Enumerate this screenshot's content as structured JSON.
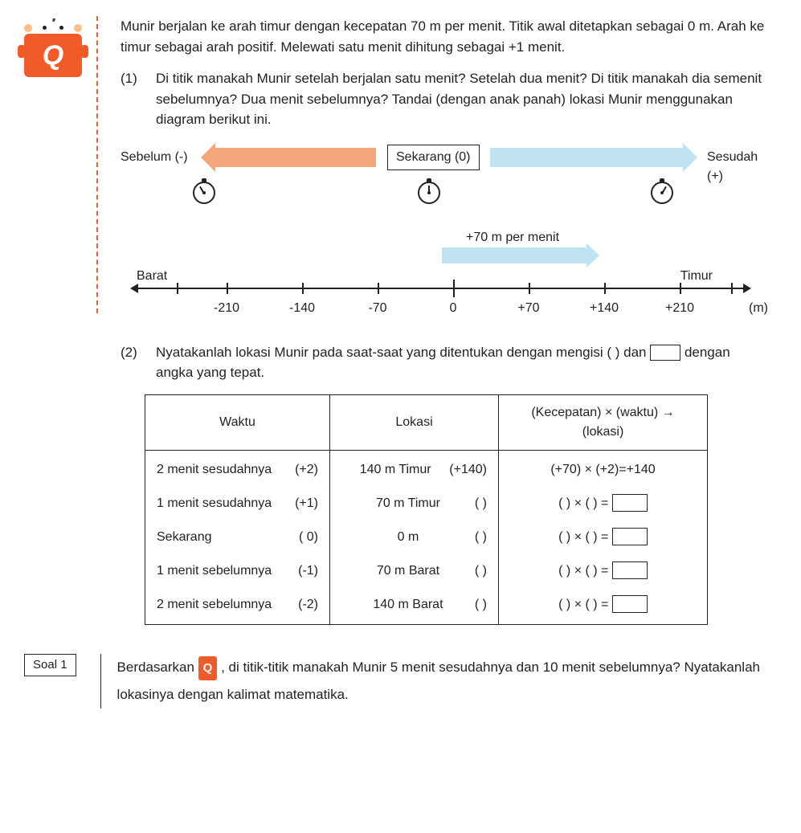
{
  "intro": "Munir berjalan ke arah timur dengan kecepatan 70 m per menit. Titik awal ditetapkan sebagai 0 m. Arah ke timur sebagai arah positif. Melewati satu menit dihitung sebagai +1 menit.",
  "q1": {
    "num": "(1)",
    "text": "Di titik manakah Munir setelah berjalan satu menit? Setelah dua menit? Di titik manakah dia semenit sebelumnya? Dua menit sebelumnya? Tandai (dengan anak panah) lokasi Munir menggunakan diagram berikut ini."
  },
  "time_diagram": {
    "before": "Sebelum (-)",
    "now": "Sekarang (0)",
    "after": "Sesudah (+)",
    "arrow_left_color": "#f4a77b",
    "arrow_right_color": "#bfe3f2"
  },
  "speed": {
    "label": "+70 m per menit",
    "arrow_color": "#bfe3f2"
  },
  "numline": {
    "west": "Barat",
    "east": "Timur",
    "unit": "(m)",
    "ticks": [
      "-210",
      "-140",
      "-70",
      "0",
      "+70",
      "+140",
      "+210"
    ]
  },
  "q2": {
    "num": "(2)",
    "text_a": "Nyatakanlah lokasi Munir pada saat-saat yang ditentukan dengan mengisi (   ) dan ",
    "text_b": " dengan angka yang tepat."
  },
  "table": {
    "headers": [
      "Waktu",
      "Lokasi",
      "(Kecepatan) × (waktu) → (lokasi)"
    ],
    "rows": [
      {
        "time_label": "2 menit sesudahnya",
        "time_val": "(+2)",
        "loc_label": "140 m Timur",
        "loc_val": "(+140)",
        "calc": "(+70) × (+2)=+140",
        "has_box": false
      },
      {
        "time_label": "1 menit sesudahnya",
        "time_val": "(+1)",
        "loc_label": "70 m Timur",
        "loc_val": "(      )",
        "calc": "(      ) × (      ) =",
        "has_box": true
      },
      {
        "time_label": "Sekarang",
        "time_val": "(  0)",
        "loc_label": "0 m",
        "loc_val": "(      )",
        "calc": "(      ) × (      ) =",
        "has_box": true
      },
      {
        "time_label": "1 menit sebelumnya",
        "time_val": "(-1)",
        "loc_label": "70 m Barat",
        "loc_val": "(      )",
        "calc": "(      ) × (      ) =",
        "has_box": true
      },
      {
        "time_label": "2 menit sebelumnya",
        "time_val": "(-2)",
        "loc_label": "140 m Barat",
        "loc_val": "(      )",
        "calc": "(      ) × (      ) =",
        "has_box": true
      }
    ]
  },
  "soal": {
    "label": "Soal 1",
    "badge": "Q",
    "text_a": "Berdasarkan ",
    "text_b": " , di titik-titik manakah Munir 5 menit sesudahnya dan 10 menit sebelumnya? Nyatakanlah lokasinya dengan kalimat matematika."
  },
  "colors": {
    "accent": "#f15a29",
    "blue_light": "#bfe3f2",
    "peach": "#f4a77b",
    "text": "#222222"
  }
}
